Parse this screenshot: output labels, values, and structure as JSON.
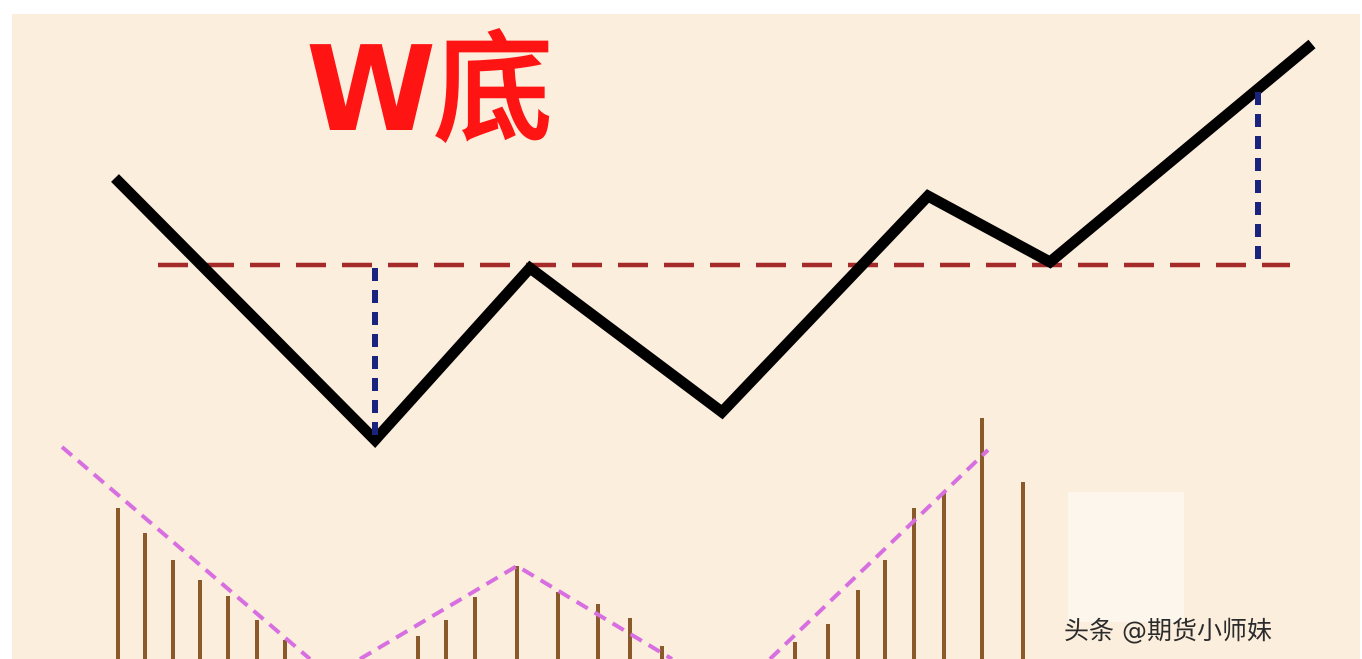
{
  "title": "W底",
  "watermark": "头条 @期货小师妹",
  "colors": {
    "background": "#fbeedd",
    "price_line": "#000000",
    "neckline": "#a52a2a",
    "measure_line": "#1a237e",
    "volume_bar": "#8b5a2b",
    "volume_trend": "#d86fe0",
    "title": "#ff1414"
  }
}
